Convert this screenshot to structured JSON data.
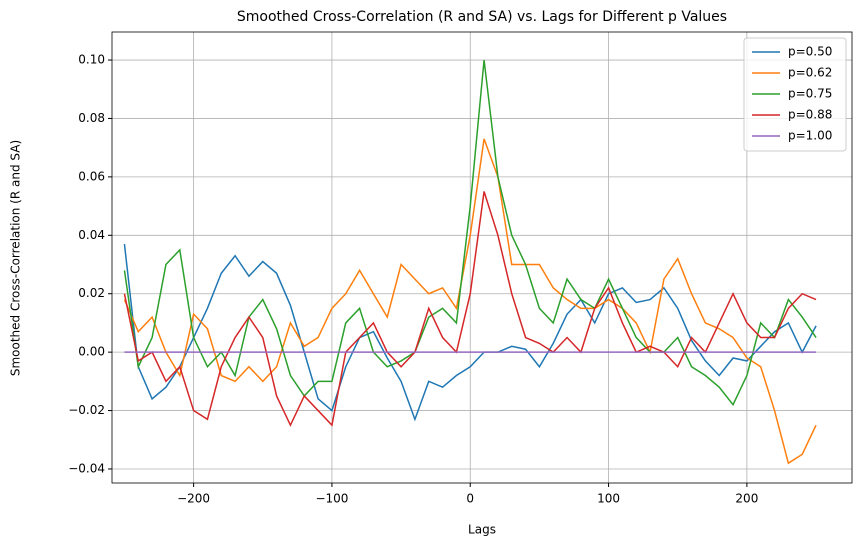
{
  "chart_data": {
    "type": "line",
    "title": "Smoothed Cross-Correlation (R and SA) vs. Lags for Different p Values",
    "x_label": "Lags",
    "y_label": "Smoothed Cross-Correlation (R and SA)",
    "x": [
      -250,
      -240,
      -230,
      -220,
      -210,
      -200,
      -190,
      -180,
      -170,
      -160,
      -150,
      -140,
      -130,
      -120,
      -110,
      -100,
      -90,
      -80,
      -70,
      -60,
      -50,
      -40,
      -30,
      -20,
      -10,
      0,
      10,
      20,
      30,
      40,
      50,
      60,
      70,
      80,
      90,
      100,
      110,
      120,
      130,
      140,
      150,
      160,
      170,
      180,
      190,
      200,
      210,
      220,
      230,
      240,
      250
    ],
    "series": [
      {
        "name": "p=0.50",
        "color": "#1f77b4",
        "values": [
          0.037,
          -0.005,
          -0.016,
          -0.012,
          -0.005,
          0.005,
          0.015,
          0.027,
          0.033,
          0.026,
          0.031,
          0.027,
          0.016,
          0.0,
          -0.016,
          -0.02,
          -0.005,
          0.005,
          0.007,
          -0.002,
          -0.01,
          -0.023,
          -0.01,
          -0.012,
          -0.008,
          -0.005,
          0.0,
          0.0,
          0.002,
          0.001,
          -0.005,
          0.003,
          0.013,
          0.018,
          0.01,
          0.02,
          0.022,
          0.017,
          0.018,
          0.022,
          0.015,
          0.004,
          -0.003,
          -0.008,
          -0.002,
          -0.003,
          0.002,
          0.007,
          0.01,
          0.0,
          0.009
        ]
      },
      {
        "name": "p=0.62",
        "color": "#ff7f0e",
        "values": [
          0.018,
          0.007,
          0.012,
          0.0,
          -0.008,
          0.013,
          0.008,
          -0.008,
          -0.01,
          -0.005,
          -0.01,
          -0.005,
          0.01,
          0.002,
          0.005,
          0.015,
          0.02,
          0.028,
          0.02,
          0.012,
          0.03,
          0.025,
          0.02,
          0.022,
          0.015,
          0.04,
          0.073,
          0.06,
          0.03,
          0.03,
          0.03,
          0.022,
          0.018,
          0.015,
          0.015,
          0.018,
          0.015,
          0.01,
          0.0,
          0.025,
          0.032,
          0.02,
          0.01,
          0.008,
          0.005,
          -0.002,
          -0.005,
          -0.02,
          -0.038,
          -0.035,
          -0.025
        ]
      },
      {
        "name": "p=0.75",
        "color": "#2ca02c",
        "values": [
          0.028,
          -0.005,
          0.005,
          0.03,
          0.035,
          0.005,
          -0.005,
          0.0,
          -0.008,
          0.012,
          0.018,
          0.008,
          -0.008,
          -0.015,
          -0.01,
          -0.01,
          0.01,
          0.015,
          0.0,
          -0.005,
          -0.003,
          0.0,
          0.012,
          0.015,
          0.01,
          0.05,
          0.1,
          0.06,
          0.04,
          0.03,
          0.015,
          0.01,
          0.025,
          0.018,
          0.015,
          0.025,
          0.015,
          0.005,
          0.0,
          0.0,
          0.005,
          -0.005,
          -0.008,
          -0.012,
          -0.018,
          -0.008,
          0.01,
          0.005,
          0.018,
          0.012,
          0.005
        ]
      },
      {
        "name": "p=0.88",
        "color": "#d62728",
        "values": [
          0.02,
          -0.003,
          0.0,
          -0.01,
          -0.005,
          -0.02,
          -0.023,
          -0.005,
          0.005,
          0.012,
          0.005,
          -0.015,
          -0.025,
          -0.015,
          -0.02,
          -0.025,
          0.0,
          0.005,
          0.01,
          0.0,
          -0.005,
          0.0,
          0.015,
          0.005,
          0.0,
          0.02,
          0.055,
          0.04,
          0.02,
          0.005,
          0.003,
          0.0,
          0.005,
          0.0,
          0.015,
          0.022,
          0.01,
          0.0,
          0.002,
          0.0,
          -0.005,
          0.005,
          0.0,
          0.01,
          0.02,
          0.01,
          0.005,
          0.005,
          0.015,
          0.02,
          0.018
        ]
      },
      {
        "name": "p=1.00",
        "color": "#9467bd",
        "values": [
          0,
          0,
          0,
          0,
          0,
          0,
          0,
          0,
          0,
          0,
          0,
          0,
          0,
          0,
          0,
          0,
          0,
          0,
          0,
          0,
          0,
          0,
          0,
          0,
          0,
          0,
          0,
          0,
          0,
          0,
          0,
          0,
          0,
          0,
          0,
          0,
          0,
          0,
          0,
          0,
          0,
          0,
          0,
          0,
          0,
          0,
          0,
          0,
          0,
          0,
          0
        ]
      }
    ],
    "xlim": [
      -259,
      276
    ],
    "ylim": [
      -0.0448,
      0.1096
    ],
    "xticks": [
      {
        "value": -200,
        "label": "−200"
      },
      {
        "value": -100,
        "label": "−100"
      },
      0,
      100,
      200
    ],
    "yticks": [
      {
        "value": -0.04,
        "label": "−0.04"
      },
      {
        "value": -0.02,
        "label": "−0.02"
      },
      {
        "value": 0,
        "label": "0.00"
      },
      {
        "value": 0.02,
        "label": "0.02"
      },
      {
        "value": 0.04,
        "label": "0.04"
      },
      {
        "value": 0.06,
        "label": "0.06"
      },
      {
        "value": 0.08,
        "label": "0.08"
      },
      {
        "value": 0.1,
        "label": "0.10"
      }
    ],
    "grid": true,
    "legend": "upper-right"
  }
}
